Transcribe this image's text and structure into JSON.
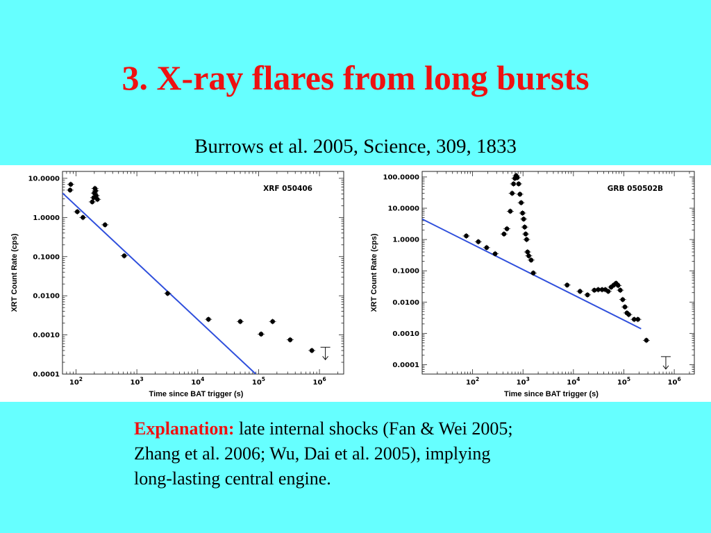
{
  "slide": {
    "title": "3. X-ray flares from long bursts",
    "reference": "Burrows et al. 2005, Science, 309, 1833",
    "explanation_lead": "Explanation:",
    "explanation_lines": [
      " late internal shocks (Fan & Wei 2005;",
      "Zhang et al. 2006; Wu, Dai et al. 2005), implying",
      "long-lasting central engine."
    ]
  },
  "chart_data": [
    {
      "type": "scatter",
      "label": "XRF 050406",
      "xlabel": "Time since BAT trigger (s)",
      "ylabel": "XRT Count Rate (cps)",
      "xscale": "log",
      "yscale": "log",
      "xlim": [
        60,
        2500000
      ],
      "ylim": [
        0.0001,
        15
      ],
      "xticks": [
        100,
        1000,
        10000,
        100000,
        1000000
      ],
      "xtick_labels": [
        {
          "b": "10",
          "e": "2"
        },
        {
          "b": "10",
          "e": "3"
        },
        {
          "b": "10",
          "e": "4"
        },
        {
          "b": "10",
          "e": "5"
        },
        {
          "b": "10",
          "e": "6"
        }
      ],
      "yticks": [
        10,
        1,
        0.1,
        0.01,
        0.001,
        0.0001
      ],
      "ytick_labels": [
        "10.0000",
        "1.0000",
        "0.1000",
        "0.0100",
        "0.0010",
        "0.0001"
      ],
      "points": [
        [
          80,
          5.0
        ],
        [
          82,
          7.0
        ],
        [
          105,
          1.4
        ],
        [
          130,
          1.0
        ],
        [
          185,
          2.5
        ],
        [
          195,
          3.2
        ],
        [
          200,
          4.2
        ],
        [
          205,
          5.5
        ],
        [
          210,
          4.8
        ],
        [
          215,
          3.6
        ],
        [
          225,
          2.9
        ],
        [
          300,
          0.65
        ],
        [
          620,
          0.105
        ],
        [
          3200,
          0.0115
        ],
        [
          15000,
          0.0025
        ],
        [
          50000,
          0.0022
        ],
        [
          110000,
          0.00105
        ],
        [
          170000,
          0.0022
        ],
        [
          330000,
          0.00075
        ],
        [
          750000,
          0.0004
        ]
      ],
      "upper_limits": [
        [
          1250000,
          0.00035
        ]
      ],
      "fit_line": {
        "color": "#2f4fdc",
        "from": [
          60,
          4.2
        ],
        "to": [
          90000,
          0.0001
        ]
      },
      "legend_position": "top-right"
    },
    {
      "type": "scatter",
      "label": "GRB 050502B",
      "xlabel": "Time since BAT trigger (s)",
      "ylabel": "XRT Count Rate (cps)",
      "xscale": "log",
      "yscale": "log",
      "xlim": [
        10,
        2500000
      ],
      "ylim": [
        5e-05,
        150
      ],
      "xticks": [
        100,
        1000,
        10000,
        100000,
        1000000
      ],
      "xtick_labels": [
        {
          "b": "10",
          "e": "2"
        },
        {
          "b": "10",
          "e": "3"
        },
        {
          "b": "10",
          "e": "4"
        },
        {
          "b": "10",
          "e": "5"
        },
        {
          "b": "10",
          "e": "6"
        }
      ],
      "yticks": [
        100,
        10,
        1,
        0.1,
        0.01,
        0.001,
        0.0001
      ],
      "ytick_labels": [
        "100.0000",
        "10.0000",
        "1.0000",
        "0.1000",
        "0.0100",
        "0.0010",
        "0.0001"
      ],
      "points": [
        [
          75,
          1.3
        ],
        [
          130,
          0.85
        ],
        [
          190,
          0.55
        ],
        [
          280,
          0.35
        ],
        [
          420,
          1.5
        ],
        [
          480,
          2.2
        ],
        [
          560,
          8.0
        ],
        [
          610,
          30
        ],
        [
          650,
          60
        ],
        [
          690,
          90
        ],
        [
          730,
          110
        ],
        [
          770,
          95
        ],
        [
          820,
          60
        ],
        [
          870,
          28
        ],
        [
          920,
          15
        ],
        [
          980,
          7
        ],
        [
          1030,
          4.5
        ],
        [
          1080,
          2.5
        ],
        [
          1130,
          1.5
        ],
        [
          1180,
          1.0
        ],
        [
          1230,
          0.4
        ],
        [
          1300,
          0.3
        ],
        [
          1450,
          0.22
        ],
        [
          1600,
          0.085
        ],
        [
          7500,
          0.035
        ],
        [
          13500,
          0.022
        ],
        [
          19000,
          0.017
        ],
        [
          26000,
          0.024
        ],
        [
          31000,
          0.025
        ],
        [
          37000,
          0.025
        ],
        [
          43000,
          0.025
        ],
        [
          49000,
          0.022
        ],
        [
          56000,
          0.03
        ],
        [
          63000,
          0.035
        ],
        [
          70000,
          0.04
        ],
        [
          77000,
          0.034
        ],
        [
          85000,
          0.024
        ],
        [
          95000,
          0.012
        ],
        [
          105000,
          0.007
        ],
        [
          115000,
          0.0045
        ],
        [
          125000,
          0.004
        ],
        [
          160000,
          0.0028
        ],
        [
          190000,
          0.0028
        ],
        [
          280000,
          0.0006
        ]
      ],
      "upper_limits": [
        [
          680000,
          0.00012
        ]
      ],
      "fit_line": {
        "color": "#2f4fdc",
        "from": [
          10,
          4.5
        ],
        "to": [
          220000,
          0.0014
        ]
      },
      "legend_position": "top-right"
    }
  ]
}
